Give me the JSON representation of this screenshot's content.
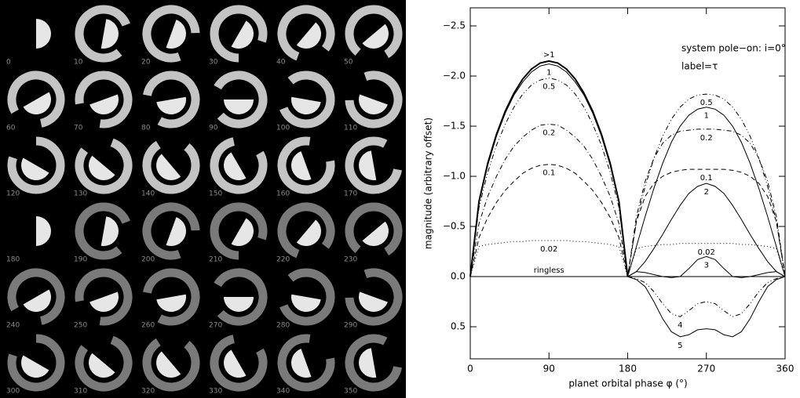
{
  "image_grid": {
    "labels": [
      0,
      10,
      20,
      30,
      40,
      50,
      60,
      70,
      80,
      90,
      100,
      110,
      120,
      130,
      140,
      150,
      160,
      170,
      180,
      190,
      200,
      210,
      220,
      230,
      240,
      250,
      260,
      270,
      280,
      290,
      300,
      310,
      320,
      330,
      340,
      350
    ]
  },
  "chart_data": {
    "type": "line",
    "annotations": [
      "system pole−on: i=0°",
      "label=τ"
    ],
    "xlabel": "planet orbital phase φ (°)",
    "ylabel": "magnitude (arbitrary offset)",
    "xlim": [
      0,
      360
    ],
    "xticks": [
      0,
      90,
      180,
      270,
      360
    ],
    "ylim": [
      0.82,
      -2.68
    ],
    "yticks": [
      {
        "value": -2.5,
        "label": "−2.5"
      },
      {
        "value": -2.0,
        "label": "−2.0"
      },
      {
        "value": -1.5,
        "label": "−1.5"
      },
      {
        "value": -1.0,
        "label": "−1.0"
      },
      {
        "value": -0.5,
        "label": "−0.5"
      },
      {
        "value": 0,
        "label": "0.0"
      },
      {
        "value": 0.5,
        "label": "0.5"
      }
    ],
    "x": [
      0,
      10,
      20,
      30,
      40,
      50,
      60,
      70,
      80,
      90,
      100,
      110,
      120,
      130,
      140,
      150,
      160,
      170,
      180,
      190,
      200,
      210,
      220,
      230,
      240,
      250,
      260,
      270,
      280,
      290,
      300,
      310,
      320,
      330,
      340,
      350,
      360
    ],
    "series": [
      {
        "name": ">1",
        "color": "#000000",
        "dash": "solid",
        "width": 2,
        "values": [
          0,
          -0.75,
          -1.13,
          -1.42,
          -1.65,
          -1.83,
          -1.97,
          -2.07,
          -2.13,
          -2.15,
          -2.13,
          -2.07,
          -1.97,
          -1.83,
          -1.65,
          -1.42,
          -1.13,
          -0.75,
          0,
          null,
          null,
          null,
          null,
          null,
          null,
          null,
          null,
          null,
          null,
          null,
          null,
          null,
          null,
          null,
          null,
          null,
          null
        ]
      },
      {
        "name": "1",
        "color": "#000000",
        "dash": "solid",
        "width": 1,
        "values": [
          0,
          -0.74,
          -1.11,
          -1.4,
          -1.63,
          -1.81,
          -1.94,
          -2.04,
          -2.1,
          -2.12,
          -2.1,
          -2.04,
          -1.94,
          -1.81,
          -1.63,
          -1.4,
          -1.11,
          -0.74,
          0,
          -0.3,
          -0.6,
          -0.88,
          -1.13,
          -1.34,
          -1.5,
          -1.61,
          -1.67,
          -1.69,
          -1.67,
          -1.61,
          -1.5,
          -1.34,
          -1.13,
          -0.88,
          -0.6,
          -0.3,
          0
        ]
      },
      {
        "name": "0.5",
        "color": "#000000",
        "dash": "dashdotdot",
        "width": 1,
        "values": [
          0,
          -0.69,
          -1.04,
          -1.31,
          -1.52,
          -1.69,
          -1.82,
          -1.91,
          -1.96,
          -1.98,
          -1.96,
          -1.91,
          -1.82,
          -1.69,
          -1.52,
          -1.31,
          -1.04,
          -0.69,
          0,
          -0.55,
          -0.9,
          -1.18,
          -1.4,
          -1.57,
          -1.69,
          -1.77,
          -1.81,
          -1.82,
          -1.81,
          -1.77,
          -1.69,
          -1.57,
          -1.4,
          -1.18,
          -0.9,
          -0.55,
          0
        ]
      },
      {
        "name": "0.2",
        "color": "#000000",
        "dash": "dashdot",
        "width": 1,
        "values": [
          0,
          -0.53,
          -0.8,
          -1.0,
          -1.17,
          -1.3,
          -1.39,
          -1.46,
          -1.51,
          -1.52,
          -1.51,
          -1.46,
          -1.39,
          -1.3,
          -1.17,
          -1.0,
          -0.8,
          -0.53,
          0,
          -0.6,
          -0.95,
          -1.18,
          -1.33,
          -1.41,
          -1.45,
          -1.46,
          -1.47,
          -1.47,
          -1.47,
          -1.46,
          -1.45,
          -1.41,
          -1.33,
          -1.18,
          -0.95,
          -0.6,
          0
        ]
      },
      {
        "name": "0.1",
        "color": "#000000",
        "dash": "dashed",
        "width": 1,
        "values": [
          0,
          -0.39,
          -0.59,
          -0.74,
          -0.86,
          -0.95,
          -1.03,
          -1.08,
          -1.11,
          -1.12,
          -1.11,
          -1.08,
          -1.03,
          -0.95,
          -0.86,
          -0.74,
          -0.59,
          -0.39,
          0,
          -0.55,
          -0.8,
          -0.93,
          -1.0,
          -1.04,
          -1.06,
          -1.07,
          -1.07,
          -1.07,
          -1.07,
          -1.07,
          -1.06,
          -1.04,
          -1.0,
          -0.93,
          -0.8,
          -0.55,
          0
        ]
      },
      {
        "name": "0.02",
        "color": "#000000",
        "dash": "dotted",
        "width": 1,
        "values": [
          0,
          -0.3,
          -0.32,
          -0.33,
          -0.34,
          -0.35,
          -0.35,
          -0.36,
          -0.36,
          -0.36,
          -0.36,
          -0.36,
          -0.35,
          -0.35,
          -0.34,
          -0.33,
          -0.32,
          -0.3,
          0,
          -0.28,
          -0.3,
          -0.31,
          -0.32,
          -0.32,
          -0.33,
          -0.33,
          -0.33,
          -0.33,
          -0.33,
          -0.33,
          -0.33,
          -0.32,
          -0.32,
          -0.31,
          -0.3,
          -0.28,
          0
        ]
      },
      {
        "name": "ringless",
        "color": "#000000",
        "dash": "solid",
        "width": 1,
        "values": [
          0,
          0,
          0,
          0,
          0,
          0,
          0,
          0,
          0,
          0,
          0,
          0,
          0,
          0,
          0,
          0,
          0,
          0,
          0,
          0,
          0,
          0,
          0,
          0,
          0,
          0,
          0,
          0,
          0,
          0,
          0,
          0,
          0,
          0,
          0,
          0,
          0
        ]
      },
      {
        "name": "2",
        "color": "#000000",
        "dash": "solid",
        "width": 1,
        "values": [
          null,
          null,
          null,
          null,
          null,
          null,
          null,
          null,
          null,
          null,
          null,
          null,
          null,
          null,
          null,
          null,
          null,
          null,
          0,
          -0.05,
          -0.15,
          -0.28,
          -0.42,
          -0.57,
          -0.71,
          -0.83,
          -0.9,
          -0.93,
          -0.9,
          -0.83,
          -0.71,
          -0.57,
          -0.42,
          -0.28,
          -0.15,
          -0.05,
          0
        ]
      },
      {
        "name": "3",
        "color": "#000000",
        "dash": "solid",
        "width": 1,
        "values": [
          null,
          null,
          null,
          null,
          null,
          null,
          null,
          null,
          null,
          null,
          null,
          null,
          null,
          null,
          null,
          null,
          null,
          null,
          0,
          -0.05,
          -0.04,
          -0.02,
          0,
          0.01,
          0,
          -0.08,
          -0.17,
          -0.2,
          -0.17,
          -0.08,
          0,
          0.01,
          0,
          -0.02,
          -0.04,
          -0.05,
          0
        ]
      },
      {
        "name": "4",
        "color": "#000000",
        "dash": "dashdotdot",
        "width": 1,
        "values": [
          null,
          null,
          null,
          null,
          null,
          null,
          null,
          null,
          null,
          null,
          null,
          null,
          null,
          null,
          null,
          null,
          null,
          null,
          0,
          0.02,
          0.06,
          0.15,
          0.27,
          0.37,
          0.4,
          0.34,
          0.27,
          0.25,
          0.27,
          0.34,
          0.4,
          0.37,
          0.27,
          0.15,
          0.06,
          0.02,
          0
        ]
      },
      {
        "name": "5",
        "color": "#000000",
        "dash": "solid",
        "width": 1,
        "values": [
          null,
          null,
          null,
          null,
          null,
          null,
          null,
          null,
          null,
          null,
          null,
          null,
          null,
          null,
          null,
          null,
          null,
          null,
          0,
          0.03,
          0.1,
          0.25,
          0.42,
          0.55,
          0.6,
          0.58,
          0.53,
          0.52,
          0.53,
          0.58,
          0.6,
          0.55,
          0.42,
          0.25,
          0.1,
          0.03,
          0
        ]
      }
    ]
  }
}
